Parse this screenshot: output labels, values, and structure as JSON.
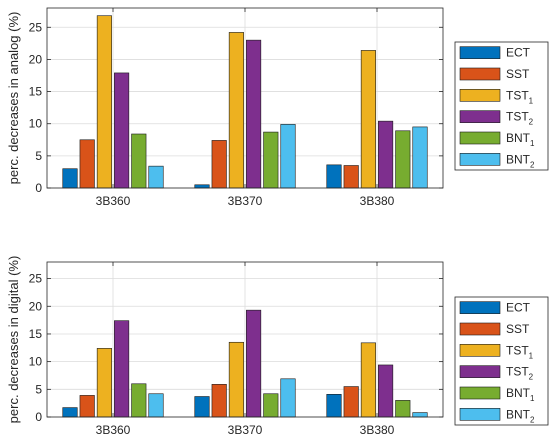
{
  "chart_data": [
    {
      "type": "bar",
      "categories": [
        "3B360",
        "3B370",
        "3B380"
      ],
      "ylabel": "perc. decreases in analog (%)",
      "ylim": [
        0,
        28
      ],
      "yticks": [
        0,
        5,
        10,
        15,
        20,
        25
      ],
      "grid": true,
      "legend": "right",
      "series": [
        {
          "name": "ECT",
          "sub": "",
          "color": "#0072BD",
          "values": [
            3.0,
            0.5,
            3.6
          ]
        },
        {
          "name": "SST",
          "sub": "",
          "color": "#D95319",
          "values": [
            7.5,
            7.4,
            3.5
          ]
        },
        {
          "name": "TST",
          "sub": "1",
          "color": "#EDB120",
          "values": [
            26.8,
            24.2,
            21.4
          ]
        },
        {
          "name": "TST",
          "sub": "2",
          "color": "#7E2F8E",
          "values": [
            17.9,
            23.0,
            10.4
          ]
        },
        {
          "name": "BNT",
          "sub": "1",
          "color": "#77AC30",
          "values": [
            8.4,
            8.7,
            8.9
          ]
        },
        {
          "name": "BNT",
          "sub": "2",
          "color": "#4DBEEE",
          "values": [
            3.4,
            9.9,
            9.5
          ]
        }
      ]
    },
    {
      "type": "bar",
      "categories": [
        "3B360",
        "3B370",
        "3B380"
      ],
      "ylabel": "perc. decreases in digital (%)",
      "ylim": [
        0,
        28
      ],
      "yticks": [
        0,
        5,
        10,
        15,
        20,
        25
      ],
      "grid": true,
      "legend": "right",
      "series": [
        {
          "name": "ECT",
          "sub": "",
          "color": "#0072BD",
          "values": [
            1.7,
            3.7,
            4.1
          ]
        },
        {
          "name": "SST",
          "sub": "",
          "color": "#D95319",
          "values": [
            3.9,
            5.9,
            5.5
          ]
        },
        {
          "name": "TST",
          "sub": "1",
          "color": "#EDB120",
          "values": [
            12.4,
            13.5,
            13.4
          ]
        },
        {
          "name": "TST",
          "sub": "2",
          "color": "#7E2F8E",
          "values": [
            17.4,
            19.3,
            9.4
          ]
        },
        {
          "name": "BNT",
          "sub": "1",
          "color": "#77AC30",
          "values": [
            6.0,
            4.2,
            3.0
          ]
        },
        {
          "name": "BNT",
          "sub": "2",
          "color": "#4DBEEE",
          "values": [
            4.2,
            6.9,
            0.8
          ]
        }
      ]
    }
  ]
}
